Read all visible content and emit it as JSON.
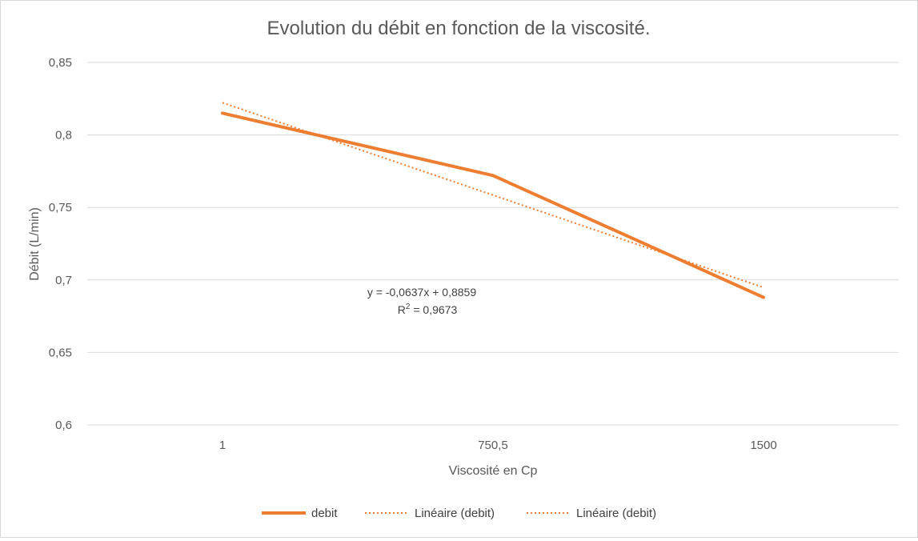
{
  "chart_data": {
    "type": "line",
    "title": "Evolution du débit en fonction de la viscosité.",
    "xlabel": "Viscosité en Cp",
    "ylabel": "Débit (L/min)",
    "categories": [
      "1",
      "750,5",
      "1500"
    ],
    "series": [
      {
        "name": "debit",
        "values": [
          0.815,
          0.772,
          0.688
        ],
        "color": "#ED7D31",
        "style": "solid"
      }
    ],
    "trendline": {
      "slope": -0.0637,
      "intercept": 0.8859,
      "equation": "y = -0,0637x + 0,8859",
      "r2_label": "R",
      "r2_sup": "2",
      "r2_value": " = 0,9673",
      "color": "#ED7D31"
    },
    "ylim": [
      0.6,
      0.85
    ],
    "yticks": [
      "0,6",
      "0,65",
      "0,7",
      "0,75",
      "0,8",
      "0,85"
    ],
    "grid": true,
    "legend": {
      "position": "bottom",
      "entries": [
        {
          "label": "debit",
          "style": "solid"
        },
        {
          "label": "Linéaire (debit)",
          "style": "dotted"
        },
        {
          "label": "Linéaire (debit)",
          "style": "dotted"
        }
      ]
    }
  }
}
